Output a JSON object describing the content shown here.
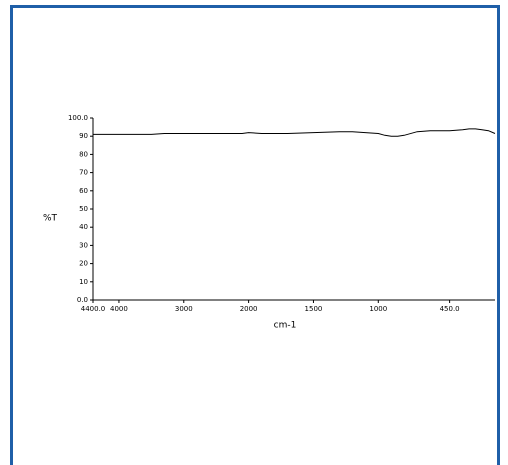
{
  "chart_data": {
    "type": "line",
    "xlabel": "cm-1",
    "ylabel": "%T",
    "xlim": [
      4400,
      100
    ],
    "ylim": [
      0,
      100
    ],
    "x_break": 2000,
    "xticks": [
      {
        "value": 4400,
        "label": "4400.0"
      },
      4000,
      3000,
      2000,
      1500,
      1000,
      {
        "value": 450,
        "label": "450.0"
      }
    ],
    "yticks": [
      {
        "value": 100,
        "label": "100.0"
      },
      90,
      80,
      70,
      60,
      50,
      40,
      30,
      20,
      10,
      {
        "value": 0,
        "label": "0.0"
      }
    ],
    "series": [
      {
        "color": "#000000",
        "x": [
          4400,
          4000,
          3500,
          3300,
          3000,
          2500,
          2100,
          2000,
          1900,
          1700,
          1500,
          1300,
          1200,
          1100,
          1000,
          950,
          900,
          850,
          800,
          700,
          600,
          450,
          350,
          300,
          250,
          200,
          150,
          100
        ],
        "values": [
          91,
          91,
          91,
          91.5,
          91.5,
          91.5,
          91.5,
          92,
          91.5,
          91.5,
          92,
          92.5,
          92.5,
          92,
          91.5,
          90.5,
          90,
          90,
          90.5,
          92.5,
          93,
          93,
          93.5,
          94,
          94,
          93.5,
          93,
          91.5
        ]
      }
    ]
  }
}
